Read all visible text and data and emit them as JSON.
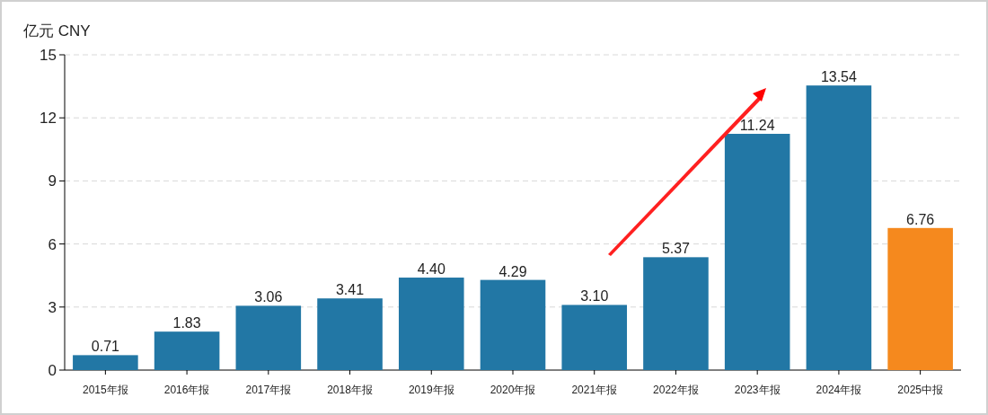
{
  "chart_data": {
    "type": "bar",
    "ylabel": "亿元  CNY",
    "categories": [
      "2015年报",
      "2016年报",
      "2017年报",
      "2018年报",
      "2019年报",
      "2020年报",
      "2021年报",
      "2022年报",
      "2023年报",
      "2024年报",
      "2025中报"
    ],
    "values": [
      0.71,
      1.83,
      3.06,
      3.41,
      4.4,
      4.29,
      3.1,
      5.37,
      11.24,
      13.54,
      6.76
    ],
    "colors": [
      "#2277a5",
      "#2277a5",
      "#2277a5",
      "#2277a5",
      "#2277a5",
      "#2277a5",
      "#2277a5",
      "#2277a5",
      "#2277a5",
      "#2277a5",
      "#f5891e"
    ],
    "value_labels": [
      "0.71",
      "1.83",
      "3.06",
      "3.41",
      "4.40",
      "4.29",
      "3.10",
      "5.37",
      "11.24",
      "13.54",
      "6.76"
    ],
    "ylim": [
      0,
      15
    ],
    "yticks": [
      0,
      3,
      6,
      9,
      12,
      15
    ],
    "grid": "y"
  }
}
